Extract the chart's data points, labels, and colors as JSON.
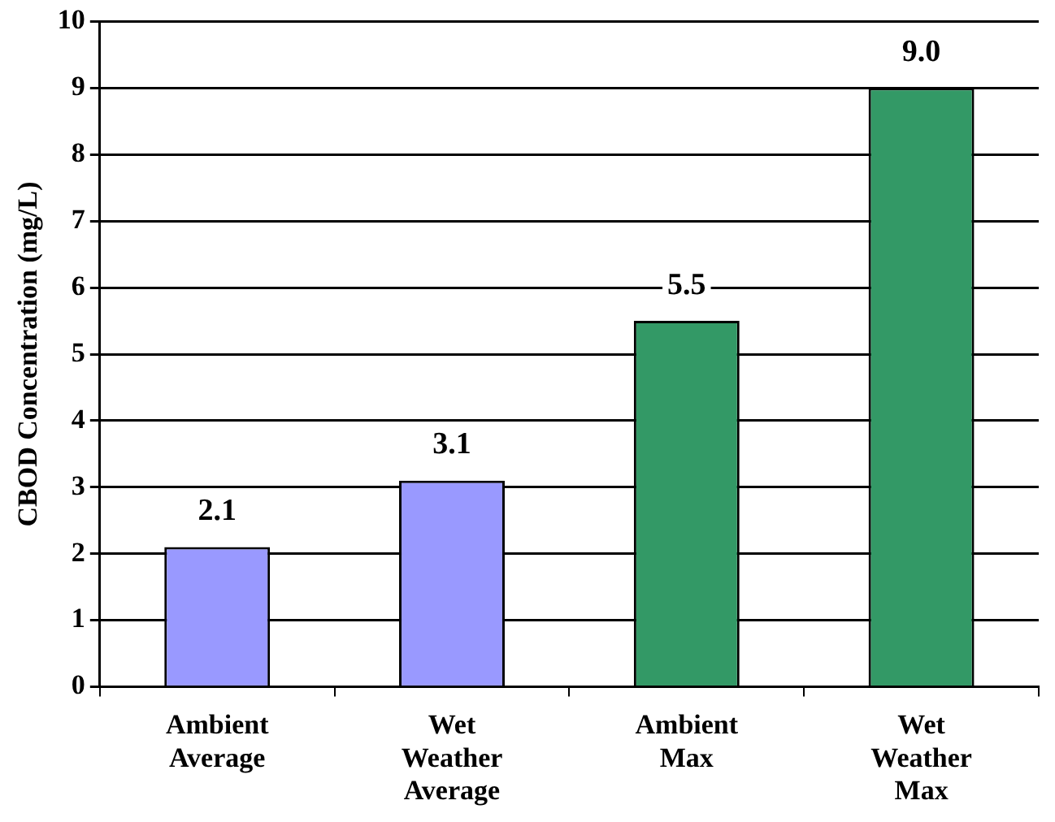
{
  "chart_data": {
    "type": "bar",
    "ylabel": "CBOD Concentration (mg/L)",
    "categories": [
      "Ambient Average",
      "Wet Weather Average",
      "Ambient Max",
      "Wet Weather Max"
    ],
    "values": [
      2.1,
      3.1,
      5.5,
      9.0
    ],
    "colors": [
      "#9999ff",
      "#9999ff",
      "#339966",
      "#339966"
    ],
    "value_labels": [
      "2.1",
      "3.1",
      "5.5",
      "9.0"
    ],
    "ylim": [
      0,
      10
    ],
    "yticks": [
      0,
      1,
      2,
      3,
      4,
      5,
      6,
      7,
      8,
      9,
      10
    ],
    "grid": "y",
    "legend": false
  }
}
